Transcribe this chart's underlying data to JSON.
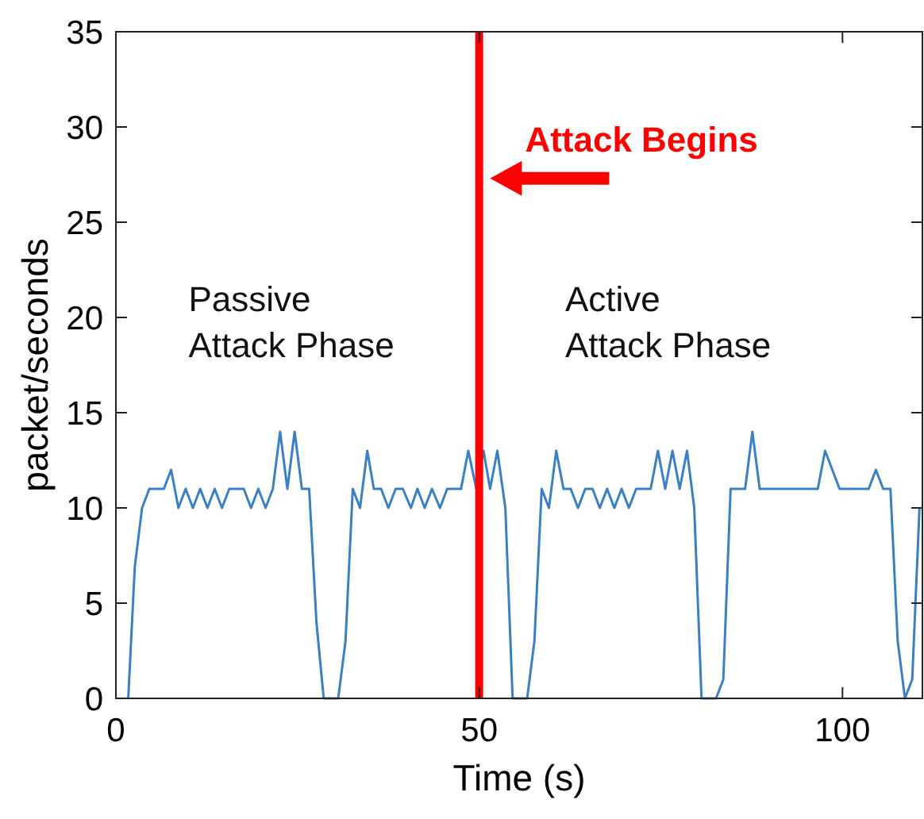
{
  "chart_data": {
    "type": "line",
    "xlabel": "Time (s)",
    "ylabel": "packet/seconds",
    "xlim": [
      0,
      111
    ],
    "xticks": [
      0,
      50,
      100
    ],
    "ylim": [
      0,
      35
    ],
    "yticks": [
      0,
      5,
      10,
      15,
      20,
      25,
      30,
      35
    ],
    "grid": false,
    "marker": "none",
    "line_style": "solid",
    "series": [
      {
        "color": "#3a80c6",
        "x": [
          1.7,
          2.6,
          3.6,
          4.6,
          6.6,
          7.6,
          8.6,
          9.6,
          10.6,
          11.6,
          12.6,
          13.6,
          14.6,
          15.6,
          17.6,
          18.6,
          19.6,
          20.6,
          21.6,
          22.6,
          23.6,
          24.6,
          25.6,
          26.6,
          27.6,
          28.6,
          30.6,
          31.6,
          32.6,
          33.6,
          34.6,
          35.5,
          36.5,
          37.5,
          38.5,
          39.5,
          40.6,
          41.5,
          42.5,
          43.5,
          44.6,
          45.6,
          47.5,
          48.5,
          49.6,
          50.6,
          51.5,
          52.5,
          53.6,
          54.6,
          56.6,
          57.6,
          58.6,
          59.6,
          60.6,
          61.6,
          62.6,
          63.6,
          64.6,
          65.6,
          66.6,
          67.6,
          68.6,
          69.6,
          70.6,
          71.6,
          73.6,
          74.6,
          75.6,
          76.6,
          77.6,
          78.6,
          79.6,
          80.6,
          82.6,
          83.6,
          84.6,
          86.6,
          87.6,
          88.6,
          96.6,
          97.6,
          99.6,
          103.6,
          104.6,
          105.6,
          106.6,
          107.6,
          108.6,
          109.6,
          110.6
        ],
        "values": [
          0,
          6.9,
          10,
          11,
          11,
          12,
          10,
          11,
          10,
          11,
          10,
          11,
          10,
          11,
          11,
          10,
          11,
          10,
          11,
          14,
          11,
          14,
          11,
          11,
          4,
          0,
          0,
          3,
          11,
          10,
          13,
          11,
          11,
          10,
          11,
          11,
          10,
          11,
          10,
          11,
          10,
          11,
          11,
          13,
          11,
          13,
          11,
          13,
          10,
          0,
          0,
          3,
          11,
          10,
          13,
          11,
          11,
          10,
          11,
          11,
          10,
          11,
          10,
          11,
          10,
          11,
          11,
          13,
          11,
          13,
          11,
          13,
          10,
          0,
          0,
          1,
          11,
          11,
          14,
          11,
          11,
          13,
          11,
          11,
          12,
          11,
          11,
          3,
          0,
          1,
          10
        ]
      }
    ],
    "ref_lines": [
      {
        "axis": "x",
        "value": 50,
        "color": "#ff0000",
        "line_style": "solid"
      }
    ],
    "annotations": [
      {
        "text": "Attack Begins",
        "x": 51.5,
        "y": 27.3
      },
      "Passive\nAttack Phase",
      "Active\nAttack Phase"
    ]
  }
}
